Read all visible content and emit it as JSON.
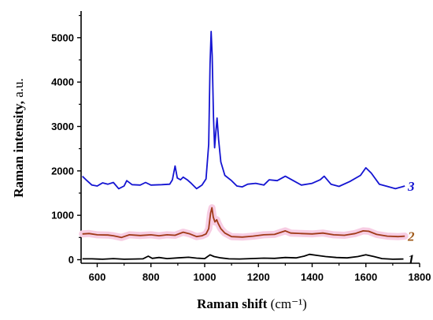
{
  "chart_data": {
    "type": "line",
    "xlabel": "Raman shift",
    "xlabel_unit": "(cm⁻¹)",
    "ylabel": "Raman intensity,",
    "ylabel_unit": " a.u.",
    "xlim": [
      540,
      1800
    ],
    "ylim": [
      -80,
      5600
    ],
    "x_ticks": [
      600,
      800,
      1000,
      1200,
      1400,
      1600,
      1800
    ],
    "y_ticks": [
      0,
      1000,
      2000,
      3000,
      4000,
      5000
    ],
    "grid": false,
    "legend": "none",
    "series": [
      {
        "name": "1",
        "color": "#000000",
        "label_color": "#000000",
        "points": [
          [
            545,
            20
          ],
          [
            580,
            20
          ],
          [
            620,
            10
          ],
          [
            660,
            25
          ],
          [
            700,
            10
          ],
          [
            740,
            15
          ],
          [
            770,
            20
          ],
          [
            790,
            80
          ],
          [
            805,
            30
          ],
          [
            830,
            50
          ],
          [
            860,
            25
          ],
          [
            900,
            40
          ],
          [
            940,
            55
          ],
          [
            970,
            35
          ],
          [
            1000,
            25
          ],
          [
            1020,
            110
          ],
          [
            1035,
            70
          ],
          [
            1060,
            40
          ],
          [
            1090,
            20
          ],
          [
            1130,
            15
          ],
          [
            1170,
            25
          ],
          [
            1220,
            35
          ],
          [
            1260,
            30
          ],
          [
            1300,
            50
          ],
          [
            1340,
            40
          ],
          [
            1370,
            80
          ],
          [
            1390,
            120
          ],
          [
            1420,
            95
          ],
          [
            1450,
            70
          ],
          [
            1490,
            50
          ],
          [
            1530,
            40
          ],
          [
            1570,
            70
          ],
          [
            1600,
            110
          ],
          [
            1630,
            70
          ],
          [
            1660,
            25
          ],
          [
            1700,
            10
          ],
          [
            1740,
            15
          ]
        ]
      },
      {
        "name": "2",
        "color": "#a03a18",
        "label_color": "#a05a1a",
        "band": "#f7cde3",
        "points": [
          [
            545,
            580
          ],
          [
            570,
            590
          ],
          [
            600,
            560
          ],
          [
            640,
            555
          ],
          [
            660,
            540
          ],
          [
            690,
            500
          ],
          [
            720,
            560
          ],
          [
            760,
            545
          ],
          [
            800,
            560
          ],
          [
            830,
            540
          ],
          [
            860,
            560
          ],
          [
            890,
            550
          ],
          [
            920,
            620
          ],
          [
            945,
            580
          ],
          [
            970,
            520
          ],
          [
            990,
            540
          ],
          [
            1005,
            580
          ],
          [
            1015,
            700
          ],
          [
            1022,
            1050
          ],
          [
            1027,
            1170
          ],
          [
            1032,
            960
          ],
          [
            1038,
            850
          ],
          [
            1045,
            900
          ],
          [
            1050,
            820
          ],
          [
            1060,
            700
          ],
          [
            1075,
            600
          ],
          [
            1100,
            520
          ],
          [
            1140,
            510
          ],
          [
            1180,
            530
          ],
          [
            1220,
            560
          ],
          [
            1260,
            570
          ],
          [
            1280,
            610
          ],
          [
            1300,
            650
          ],
          [
            1320,
            600
          ],
          [
            1360,
            590
          ],
          [
            1400,
            580
          ],
          [
            1440,
            600
          ],
          [
            1480,
            560
          ],
          [
            1520,
            550
          ],
          [
            1560,
            590
          ],
          [
            1590,
            650
          ],
          [
            1610,
            640
          ],
          [
            1640,
            570
          ],
          [
            1680,
            530
          ],
          [
            1720,
            520
          ],
          [
            1745,
            530
          ]
        ]
      },
      {
        "name": "3",
        "color": "#1414d2",
        "label_color": "#1414d2",
        "points": [
          [
            545,
            1880
          ],
          [
            560,
            1790
          ],
          [
            580,
            1680
          ],
          [
            600,
            1660
          ],
          [
            620,
            1730
          ],
          [
            640,
            1700
          ],
          [
            660,
            1740
          ],
          [
            680,
            1600
          ],
          [
            700,
            1660
          ],
          [
            710,
            1780
          ],
          [
            730,
            1690
          ],
          [
            760,
            1680
          ],
          [
            780,
            1740
          ],
          [
            800,
            1680
          ],
          [
            840,
            1690
          ],
          [
            870,
            1700
          ],
          [
            880,
            1800
          ],
          [
            890,
            2110
          ],
          [
            898,
            1840
          ],
          [
            910,
            1800
          ],
          [
            920,
            1860
          ],
          [
            935,
            1800
          ],
          [
            950,
            1720
          ],
          [
            970,
            1600
          ],
          [
            990,
            1680
          ],
          [
            1005,
            1820
          ],
          [
            1015,
            2600
          ],
          [
            1020,
            4400
          ],
          [
            1024,
            5140
          ],
          [
            1028,
            4600
          ],
          [
            1033,
            3200
          ],
          [
            1037,
            2520
          ],
          [
            1042,
            2900
          ],
          [
            1046,
            3190
          ],
          [
            1052,
            2700
          ],
          [
            1060,
            2200
          ],
          [
            1075,
            1900
          ],
          [
            1100,
            1780
          ],
          [
            1120,
            1660
          ],
          [
            1140,
            1640
          ],
          [
            1160,
            1700
          ],
          [
            1190,
            1720
          ],
          [
            1220,
            1680
          ],
          [
            1240,
            1800
          ],
          [
            1270,
            1780
          ],
          [
            1300,
            1880
          ],
          [
            1330,
            1780
          ],
          [
            1360,
            1680
          ],
          [
            1400,
            1720
          ],
          [
            1430,
            1800
          ],
          [
            1445,
            1880
          ],
          [
            1470,
            1700
          ],
          [
            1500,
            1650
          ],
          [
            1540,
            1760
          ],
          [
            1580,
            1900
          ],
          [
            1600,
            2070
          ],
          [
            1620,
            1950
          ],
          [
            1650,
            1700
          ],
          [
            1680,
            1650
          ],
          [
            1710,
            1600
          ],
          [
            1745,
            1660
          ]
        ]
      }
    ]
  }
}
